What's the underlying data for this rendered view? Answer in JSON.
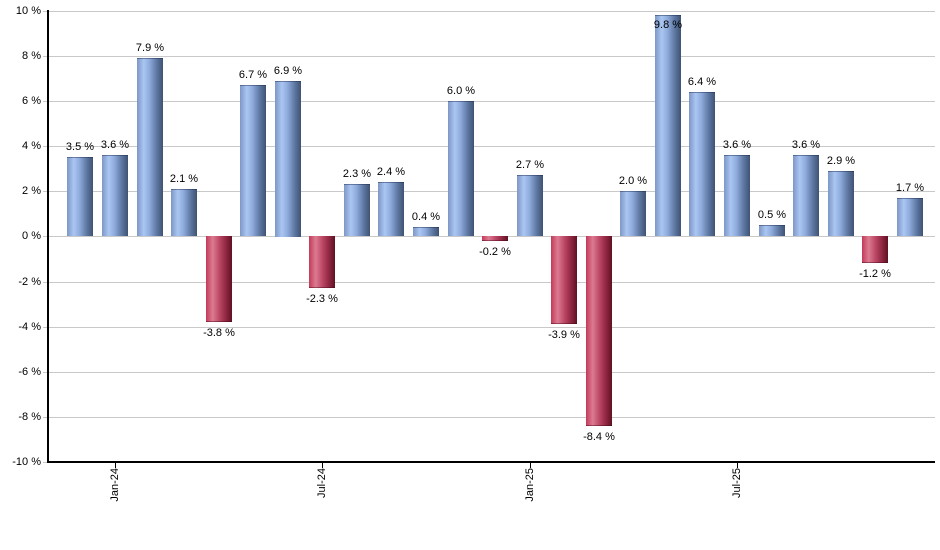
{
  "chart_data": {
    "type": "bar",
    "title": "",
    "xlabel": "",
    "ylabel": "",
    "grid": true,
    "legend": null,
    "ylim": [
      -10,
      10
    ],
    "y_tick_step": 2,
    "y_tick_labels": [
      "10 %",
      "8 %",
      "6 %",
      "4 %",
      "2 %",
      "0 %",
      "-2 %",
      "-4 %",
      "-6 %",
      "-8 %",
      "-10 %"
    ],
    "x_ticks": [
      {
        "label": "Jan-24",
        "bar_index": 1
      },
      {
        "label": "Jul-24",
        "bar_index": 7
      },
      {
        "label": "Jan-25",
        "bar_index": 13
      },
      {
        "label": "Jul-25",
        "bar_index": 19
      }
    ],
    "values": [
      3.5,
      3.6,
      7.9,
      2.1,
      -3.8,
      6.7,
      6.9,
      -2.3,
      2.3,
      2.4,
      0.4,
      6.0,
      -0.2,
      2.7,
      -3.9,
      -8.4,
      2.0,
      9.8,
      6.4,
      3.6,
      0.5,
      3.6,
      2.9,
      -1.2,
      1.7
    ],
    "bar_labels": [
      "3.5 %",
      "3.6 %",
      "7.9 %",
      "2.1 %",
      "-3.8 %",
      "6.7 %",
      "6.9 %",
      "-2.3 %",
      "2.3 %",
      "2.4 %",
      "0.4 %",
      "6.0 %",
      "-0.2 %",
      "2.7 %",
      "-3.9 %",
      "-8.4 %",
      "2.0 %",
      "9.8 %",
      "6.4 %",
      "3.6 %",
      "0.5 %",
      "3.6 %",
      "2.9 %",
      "-1.2 %",
      "1.7 %"
    ],
    "colors": {
      "positive_base": "#7e96c6",
      "negative_base": "#c33a58",
      "positive_gradient": [
        [
          "#7e96c6",
          0
        ],
        [
          "#aac6f2",
          26
        ],
        [
          "#8fabdc",
          48
        ],
        [
          "#637ea9",
          72
        ],
        [
          "#3e5273",
          100
        ]
      ],
      "negative_gradient": [
        [
          "#c33a58",
          0
        ],
        [
          "#db7b92",
          26
        ],
        [
          "#c14e6b",
          48
        ],
        [
          "#992c49",
          72
        ],
        [
          "#5f1122",
          100
        ]
      ],
      "gridline": "#c9c9c9",
      "axis": "#000000",
      "label_text": "#000000",
      "background": "#ffffff"
    }
  }
}
